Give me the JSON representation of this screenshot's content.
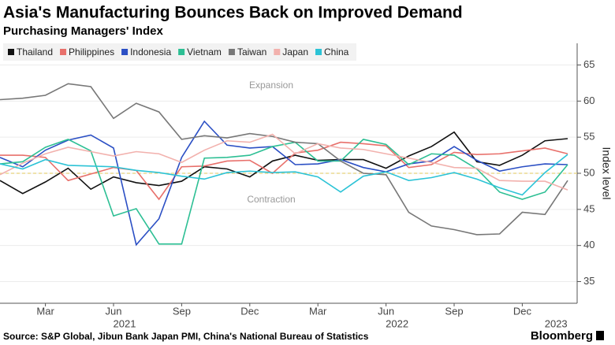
{
  "chart_data": {
    "type": "line",
    "title": "Asia's Manufacturing Bounces Back on Improved Demand",
    "subtitle": "Purchasing Managers' Index",
    "y_axis_label": "Index level",
    "annotations": [
      "Expansion",
      "Contraction"
    ],
    "source": "Source: S&P Global, Jibun Bank Japan PMI, China's National Bureau of Statistics",
    "brand": "Bloomberg",
    "categories": [
      null,
      null,
      "Mar",
      null,
      null,
      "Jun",
      null,
      null,
      "Sep",
      null,
      null,
      "Dec",
      null,
      null,
      "Mar",
      null,
      null,
      "Jun",
      null,
      null,
      "Sep",
      null,
      null,
      "Dec",
      null,
      null
    ],
    "category_years": [
      null,
      null,
      null,
      null,
      null,
      "2021",
      null,
      null,
      null,
      null,
      null,
      null,
      null,
      null,
      null,
      null,
      null,
      "2022",
      null,
      null,
      null,
      null,
      null,
      null,
      "2023",
      null
    ],
    "ylim": [
      32,
      68
    ],
    "yticks": [
      35,
      40,
      45,
      50,
      55,
      60,
      65
    ],
    "grid": true,
    "reference_value": 50,
    "legend": "top-left",
    "series": [
      {
        "name": "Thailand",
        "color": "#111111",
        "values": [
          49.0,
          47.2,
          48.8,
          50.7,
          47.8,
          49.5,
          48.7,
          48.3,
          48.9,
          50.9,
          50.6,
          49.5,
          51.7,
          52.5,
          51.8,
          51.9,
          51.9,
          50.7,
          52.4,
          53.7,
          55.7,
          51.6,
          51.1,
          52.5,
          54.5,
          54.8
        ]
      },
      {
        "name": "Philippines",
        "color": "#e8706b",
        "values": [
          52.5,
          52.5,
          52.2,
          49.0,
          49.9,
          50.8,
          50.4,
          46.4,
          50.9,
          51.0,
          51.7,
          51.8,
          50.0,
          52.8,
          53.2,
          54.3,
          54.1,
          53.8,
          50.8,
          51.2,
          52.9,
          52.6,
          52.7,
          53.1,
          53.5,
          52.7
        ]
      },
      {
        "name": "Indonesia",
        "color": "#2b4fc4",
        "values": [
          52.2,
          50.9,
          53.2,
          54.6,
          55.3,
          53.5,
          40.1,
          43.7,
          52.2,
          57.2,
          53.9,
          53.5,
          53.7,
          51.2,
          51.3,
          51.9,
          50.8,
          50.2,
          51.3,
          51.7,
          53.7,
          51.8,
          50.3,
          50.9,
          51.3,
          51.2
        ]
      },
      {
        "name": "Vietnam",
        "color": "#2dbf94",
        "values": [
          51.3,
          51.6,
          53.6,
          54.7,
          53.1,
          44.1,
          45.1,
          40.2,
          40.2,
          52.1,
          52.2,
          52.5,
          53.7,
          54.3,
          51.7,
          51.7,
          54.7,
          54.0,
          51.2,
          52.7,
          52.5,
          50.6,
          47.4,
          46.4,
          47.4,
          51.2
        ]
      },
      {
        "name": "Taiwan",
        "color": "#777777",
        "values": [
          60.2,
          60.4,
          60.8,
          62.4,
          62.0,
          57.6,
          59.7,
          58.5,
          54.7,
          55.2,
          54.9,
          55.5,
          55.1,
          54.3,
          54.1,
          51.7,
          50.0,
          49.8,
          44.6,
          42.7,
          42.2,
          41.5,
          41.6,
          44.6,
          44.3,
          49.0
        ]
      },
      {
        "name": "Japan",
        "color": "#f2b1ad",
        "values": [
          49.8,
          51.4,
          52.7,
          53.6,
          53.0,
          52.4,
          53.0,
          52.7,
          51.5,
          53.2,
          54.5,
          54.3,
          55.4,
          52.7,
          54.1,
          53.5,
          53.3,
          52.7,
          52.1,
          51.5,
          50.8,
          50.7,
          49.0,
          48.9,
          48.9,
          47.7
        ]
      },
      {
        "name": "China",
        "color": "#2cc3d6",
        "values": [
          51.3,
          50.6,
          51.9,
          51.1,
          51.0,
          50.9,
          50.4,
          50.1,
          49.6,
          49.2,
          50.1,
          50.3,
          50.1,
          50.2,
          49.5,
          47.4,
          49.6,
          50.2,
          49.0,
          49.4,
          50.1,
          49.2,
          48.0,
          47.0,
          50.1,
          52.6
        ]
      }
    ]
  }
}
